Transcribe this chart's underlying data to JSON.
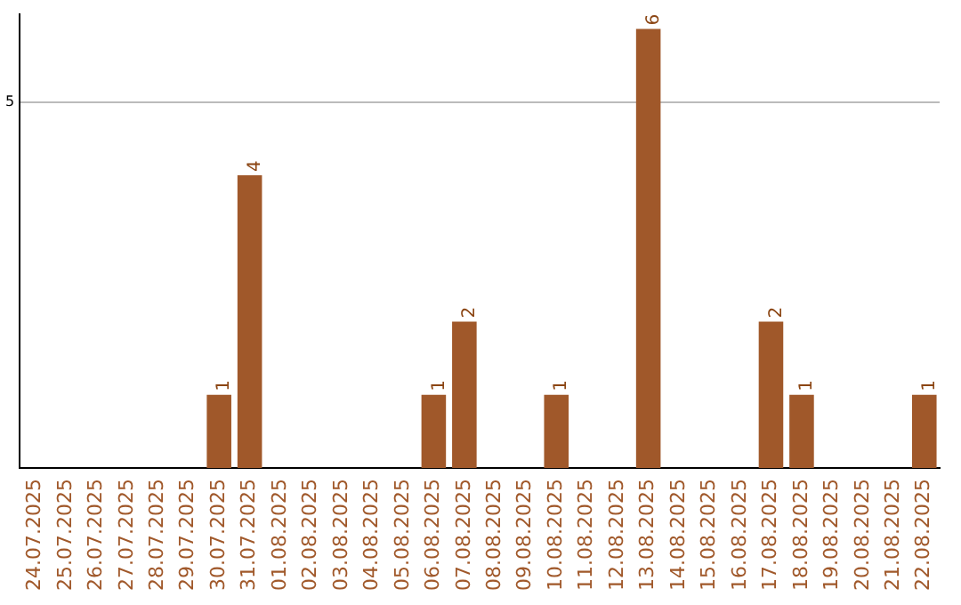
{
  "chart_data": {
    "type": "bar",
    "categories": [
      "24.07.2025",
      "25.07.2025",
      "26.07.2025",
      "27.07.2025",
      "28.07.2025",
      "29.07.2025",
      "30.07.2025",
      "31.07.2025",
      "01.08.2025",
      "02.08.2025",
      "03.08.2025",
      "04.08.2025",
      "05.08.2025",
      "06.08.2025",
      "07.08.2025",
      "08.08.2025",
      "09.08.2025",
      "10.08.2025",
      "11.08.2025",
      "12.08.2025",
      "13.08.2025",
      "14.08.2025",
      "15.08.2025",
      "16.08.2025",
      "17.08.2025",
      "18.08.2025",
      "19.08.2025",
      "20.08.2025",
      "21.08.2025",
      "22.08.2025"
    ],
    "values": [
      0,
      0,
      0,
      0,
      0,
      0,
      1,
      4,
      0,
      0,
      0,
      0,
      0,
      1,
      2,
      0,
      0,
      1,
      0,
      0,
      6,
      0,
      0,
      0,
      2,
      1,
      0,
      0,
      0,
      1
    ],
    "value_labels": [
      null,
      null,
      null,
      null,
      null,
      null,
      "1",
      "4",
      null,
      null,
      null,
      null,
      null,
      "1",
      "2",
      null,
      null,
      "1",
      null,
      null,
      "6",
      null,
      null,
      null,
      "2",
      "1",
      null,
      null,
      null,
      "1"
    ],
    "color": "#a0582a",
    "ylim": [
      0,
      6.2
    ],
    "yticks": [
      5
    ],
    "grid": "y",
    "legend": false
  }
}
